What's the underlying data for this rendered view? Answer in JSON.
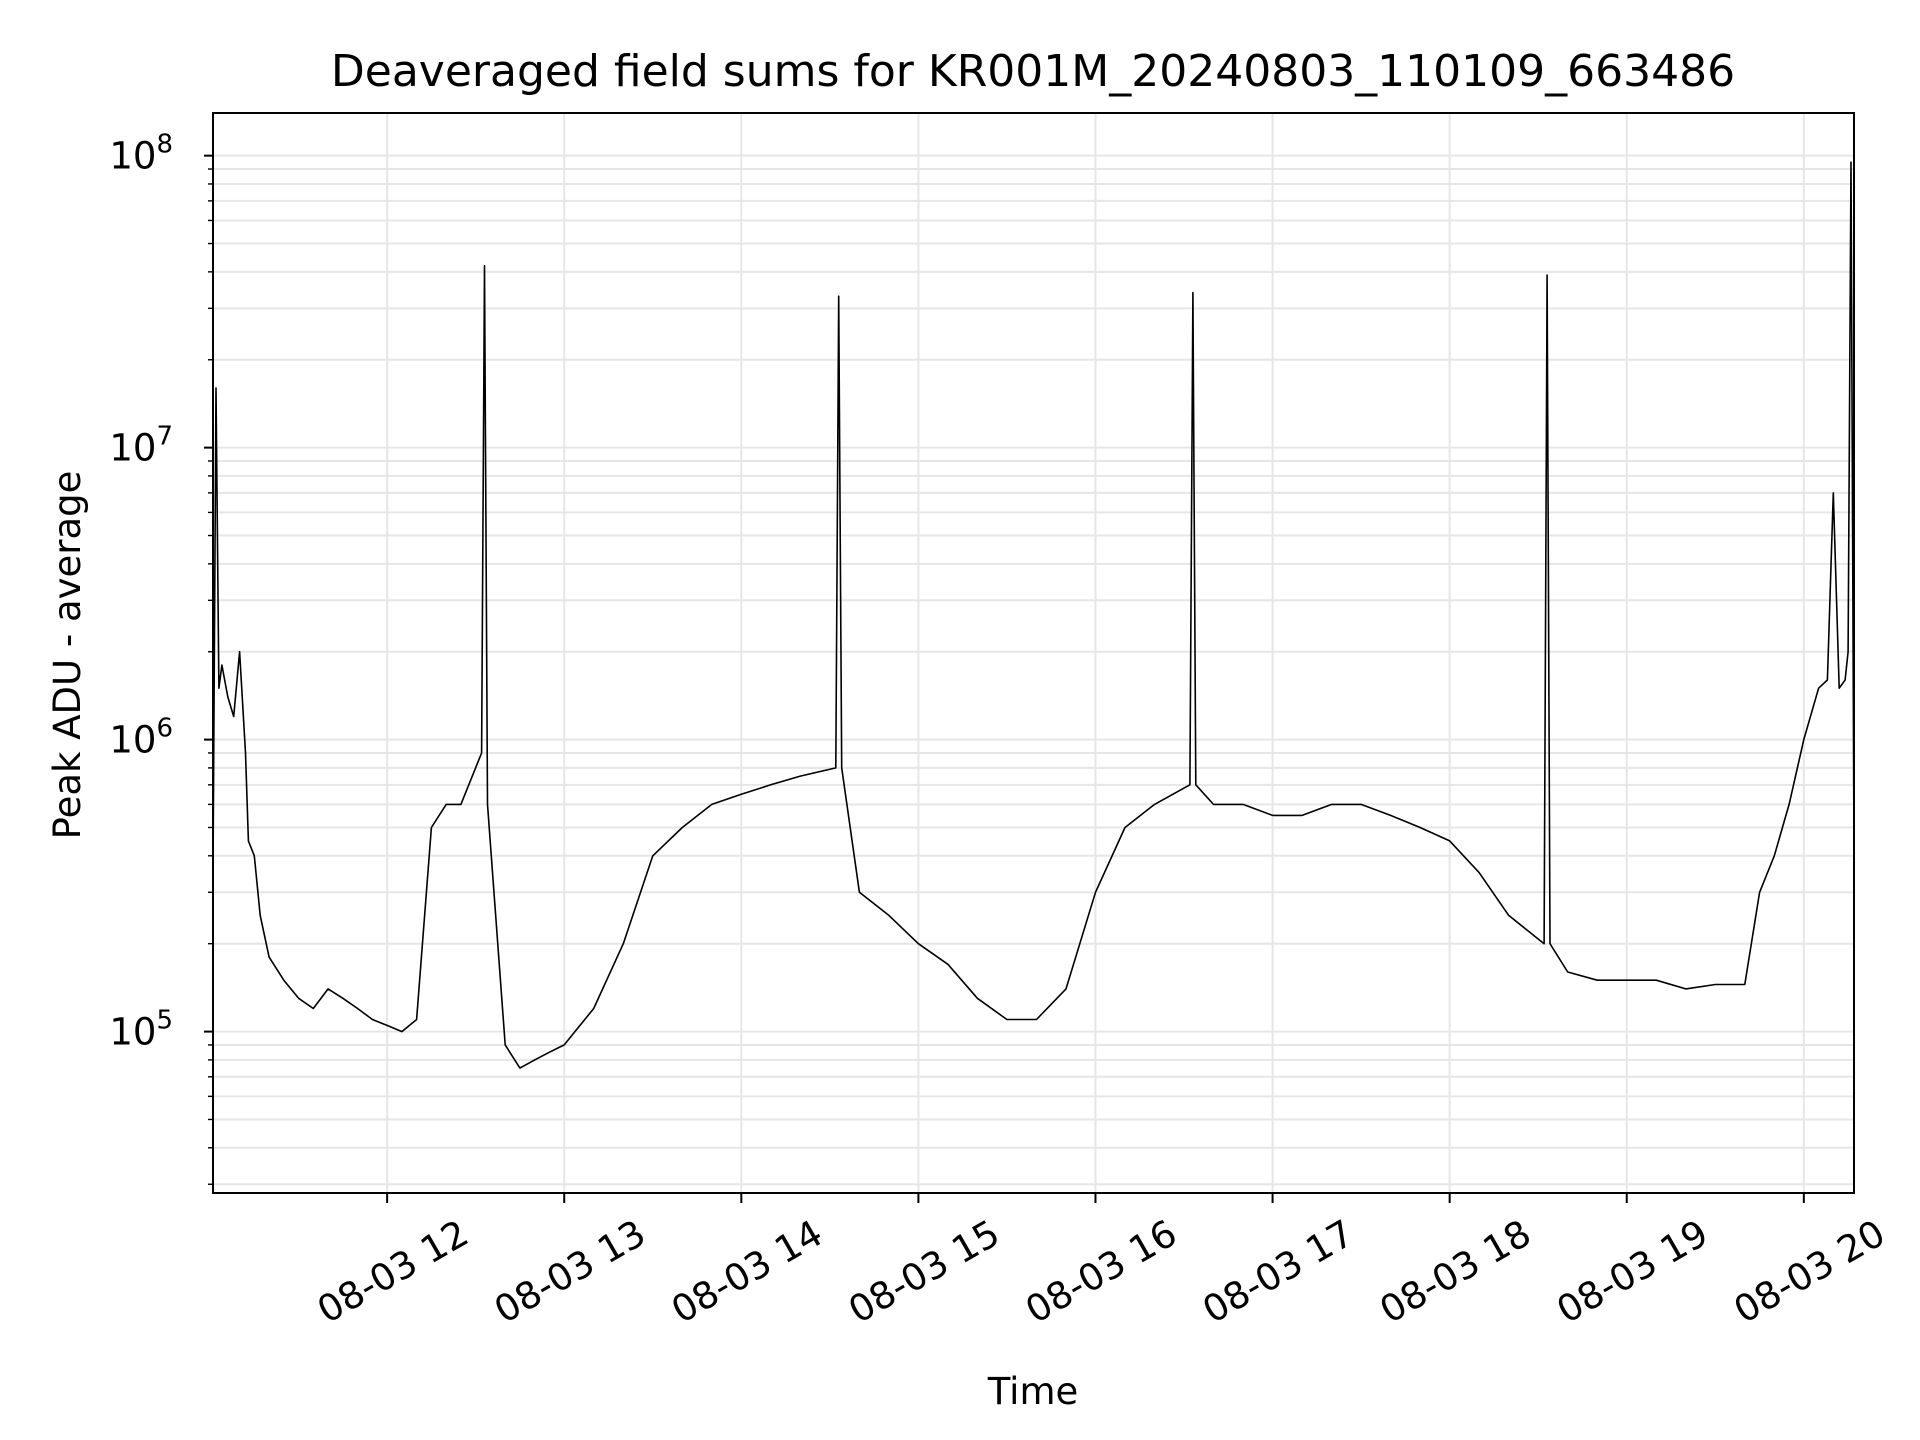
{
  "chart_data": {
    "type": "line",
    "title": "Deaveraged field sums for KR001M_20240803_110109_663486",
    "xlabel": "Time",
    "ylabel": "Peak ADU - average",
    "xlim": [
      "2024-08-03 11:01",
      "2024-08-03 20:17"
    ],
    "ylim": [
      28000,
      140000000
    ],
    "yscale": "log",
    "grid": true,
    "line_color": "#000000",
    "grid_color": "#e6e6e6",
    "xticks": [
      {
        "value": "2024-08-03 12:00",
        "label": "08-03 12"
      },
      {
        "value": "2024-08-03 13:00",
        "label": "08-03 13"
      },
      {
        "value": "2024-08-03 14:00",
        "label": "08-03 14"
      },
      {
        "value": "2024-08-03 15:00",
        "label": "08-03 15"
      },
      {
        "value": "2024-08-03 16:00",
        "label": "08-03 16"
      },
      {
        "value": "2024-08-03 17:00",
        "label": "08-03 17"
      },
      {
        "value": "2024-08-03 18:00",
        "label": "08-03 18"
      },
      {
        "value": "2024-08-03 19:00",
        "label": "08-03 19"
      },
      {
        "value": "2024-08-03 20:00",
        "label": "08-03 20"
      }
    ],
    "yticks": [
      {
        "value": 100000,
        "base": "10",
        "exp": "5"
      },
      {
        "value": 1000000,
        "base": "10",
        "exp": "6"
      },
      {
        "value": 10000000,
        "base": "10",
        "exp": "7"
      },
      {
        "value": 100000000,
        "base": "10",
        "exp": "8"
      }
    ],
    "series": [
      {
        "x": [
          "2024-08-03 11:01",
          "2024-08-03 11:02",
          "2024-08-03 11:03",
          "2024-08-03 11:04",
          "2024-08-03 11:06",
          "2024-08-03 11:08",
          "2024-08-03 11:10",
          "2024-08-03 11:12",
          "2024-08-03 11:13",
          "2024-08-03 11:15",
          "2024-08-03 11:17",
          "2024-08-03 11:20",
          "2024-08-03 11:25",
          "2024-08-03 11:30",
          "2024-08-03 11:35",
          "2024-08-03 11:40",
          "2024-08-03 11:45",
          "2024-08-03 11:50",
          "2024-08-03 11:55",
          "2024-08-03 12:00",
          "2024-08-03 12:05",
          "2024-08-03 12:10",
          "2024-08-03 12:15",
          "2024-08-03 12:20",
          "2024-08-03 12:25",
          "2024-08-03 12:32",
          "2024-08-03 12:33",
          "2024-08-03 12:34",
          "2024-08-03 12:40",
          "2024-08-03 12:45",
          "2024-08-03 12:50",
          "2024-08-03 12:55",
          "2024-08-03 13:00",
          "2024-08-03 13:10",
          "2024-08-03 13:20",
          "2024-08-03 13:30",
          "2024-08-03 13:40",
          "2024-08-03 13:50",
          "2024-08-03 14:00",
          "2024-08-03 14:10",
          "2024-08-03 14:20",
          "2024-08-03 14:32",
          "2024-08-03 14:33",
          "2024-08-03 14:34",
          "2024-08-03 14:40",
          "2024-08-03 14:50",
          "2024-08-03 15:00",
          "2024-08-03 15:10",
          "2024-08-03 15:20",
          "2024-08-03 15:30",
          "2024-08-03 15:40",
          "2024-08-03 15:50",
          "2024-08-03 16:00",
          "2024-08-03 16:10",
          "2024-08-03 16:20",
          "2024-08-03 16:32",
          "2024-08-03 16:33",
          "2024-08-03 16:34",
          "2024-08-03 16:40",
          "2024-08-03 16:50",
          "2024-08-03 17:00",
          "2024-08-03 17:10",
          "2024-08-03 17:20",
          "2024-08-03 17:30",
          "2024-08-03 17:40",
          "2024-08-03 17:50",
          "2024-08-03 18:00",
          "2024-08-03 18:10",
          "2024-08-03 18:20",
          "2024-08-03 18:32",
          "2024-08-03 18:33",
          "2024-08-03 18:34",
          "2024-08-03 18:40",
          "2024-08-03 18:50",
          "2024-08-03 19:00",
          "2024-08-03 19:10",
          "2024-08-03 19:20",
          "2024-08-03 19:30",
          "2024-08-03 19:40",
          "2024-08-03 19:45",
          "2024-08-03 19:50",
          "2024-08-03 19:55",
          "2024-08-03 20:00",
          "2024-08-03 20:05",
          "2024-08-03 20:08",
          "2024-08-03 20:10",
          "2024-08-03 20:12",
          "2024-08-03 20:14",
          "2024-08-03 20:15",
          "2024-08-03 20:16",
          "2024-08-03 20:17"
        ],
        "y": [
          350000,
          16000000,
          1500000,
          1800000,
          1400000,
          1200000,
          2000000,
          900000,
          450000,
          400000,
          250000,
          180000,
          150000,
          130000,
          120000,
          140000,
          130000,
          120000,
          110000,
          105000,
          100000,
          110000,
          500000,
          600000,
          600000,
          900000,
          42000000,
          600000,
          90000,
          75000,
          80000,
          85000,
          90000,
          120000,
          200000,
          400000,
          500000,
          600000,
          650000,
          700000,
          750000,
          800000,
          33000000,
          800000,
          300000,
          250000,
          200000,
          170000,
          130000,
          110000,
          110000,
          140000,
          300000,
          500000,
          600000,
          700000,
          34000000,
          700000,
          600000,
          600000,
          550000,
          550000,
          600000,
          600000,
          550000,
          500000,
          450000,
          350000,
          250000,
          200000,
          39000000,
          200000,
          160000,
          150000,
          150000,
          150000,
          140000,
          145000,
          145000,
          300000,
          400000,
          600000,
          1000000,
          1500000,
          1600000,
          7000000,
          1500000,
          1600000,
          2000000,
          95000000,
          400000
        ]
      }
    ]
  }
}
